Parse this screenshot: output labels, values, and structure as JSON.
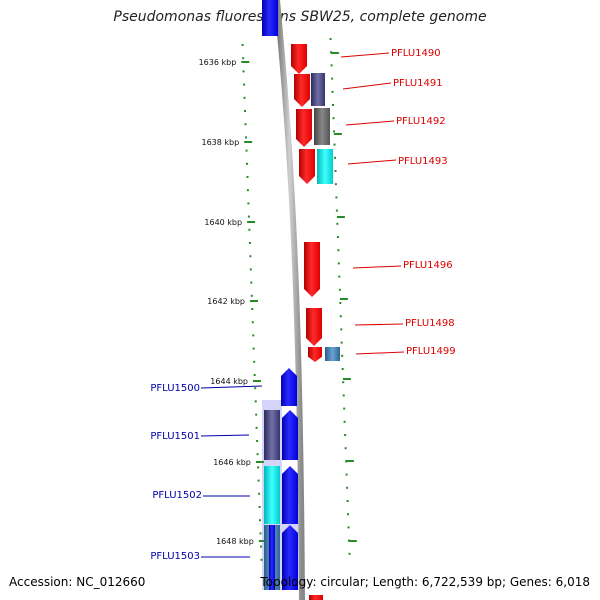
{
  "title": "Pseudomonas fluorescens SBW25, complete genome",
  "accession_text": "Accession: NC_012660",
  "topology_text": "Topology: circular; Length: 6,722,539 bp; Genes: 6,018",
  "colors": {
    "forward": "#ff0000",
    "reverse": "#0000ff",
    "backbone": "#999999",
    "tick": "#2a8a2a"
  },
  "ruler": [
    {
      "label": "1636 kbp"
    },
    {
      "label": "1638 kbp"
    },
    {
      "label": "1640 kbp"
    },
    {
      "label": "1642 kbp"
    },
    {
      "label": "1644 kbp"
    },
    {
      "label": "1646 kbp"
    },
    {
      "label": "1648 kbp"
    }
  ],
  "forward_labels": [
    {
      "name": "PFLU1490"
    },
    {
      "name": "PFLU1491"
    },
    {
      "name": "PFLU1492"
    },
    {
      "name": "PFLU1493"
    },
    {
      "name": "PFLU1496"
    },
    {
      "name": "PFLU1498"
    },
    {
      "name": "PFLU1499"
    }
  ],
  "reverse_labels": [
    {
      "name": "PFLU1500"
    },
    {
      "name": "PFLU1501"
    },
    {
      "name": "PFLU1502"
    },
    {
      "name": "PFLU1503"
    }
  ]
}
